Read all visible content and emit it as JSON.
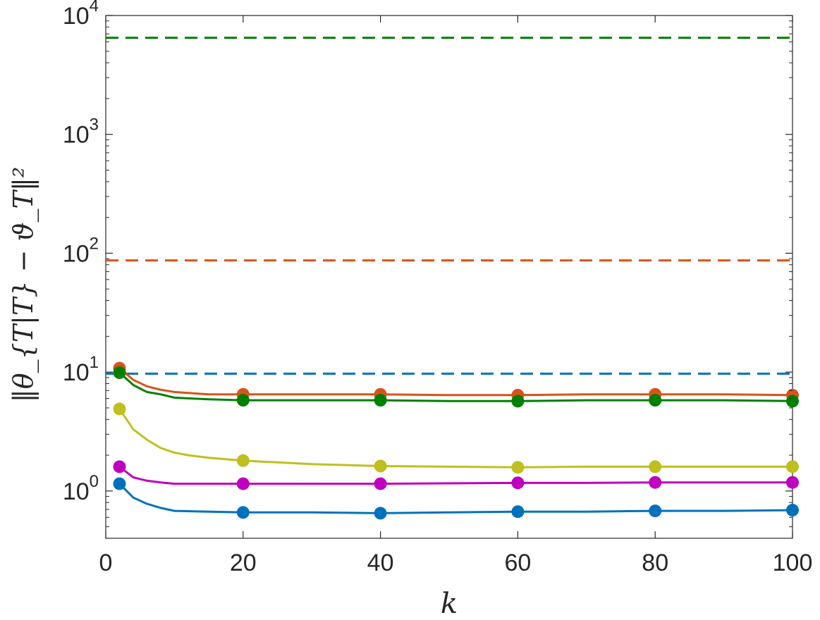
{
  "chart_data": {
    "type": "line",
    "xlabel": "k",
    "ylabel": "‖θ_{T|T} − ϑ_T‖²",
    "xlim": [
      0,
      100
    ],
    "ylim": [
      0.4,
      10000
    ],
    "yscale": "log",
    "xticks": [
      0,
      20,
      40,
      60,
      80,
      100
    ],
    "xtick_labels": [
      "0",
      "20",
      "40",
      "60",
      "80",
      "100"
    ],
    "yticks": [
      1,
      10,
      100,
      1000,
      10000
    ],
    "ytick_labels": [
      {
        "base": "10",
        "exp": "0"
      },
      {
        "base": "10",
        "exp": "1"
      },
      {
        "base": "10",
        "exp": "2"
      },
      {
        "base": "10",
        "exp": "3"
      },
      {
        "base": "10",
        "exp": "4"
      }
    ],
    "grid": false,
    "legend": "none",
    "series": [
      {
        "color": "#D95319",
        "style": "solid",
        "markers": "circle",
        "marker_x": [
          2,
          20,
          40,
          60,
          80,
          100
        ],
        "marker_y": [
          10.8,
          6.5,
          6.5,
          6.4,
          6.5,
          6.4
        ],
        "x": [
          2,
          4,
          6,
          8,
          10,
          15,
          20,
          30,
          40,
          50,
          60,
          70,
          80,
          90,
          100
        ],
        "y": [
          10.8,
          8.6,
          7.6,
          7.1,
          6.8,
          6.5,
          6.5,
          6.5,
          6.5,
          6.4,
          6.4,
          6.5,
          6.5,
          6.5,
          6.4
        ]
      },
      {
        "color": "#008000",
        "style": "solid",
        "markers": "circle",
        "marker_x": [
          2,
          20,
          40,
          60,
          80,
          100
        ],
        "marker_y": [
          9.9,
          5.8,
          5.8,
          5.7,
          5.8,
          5.7
        ],
        "x": [
          2,
          4,
          6,
          8,
          10,
          15,
          20,
          30,
          40,
          50,
          60,
          70,
          80,
          90,
          100
        ],
        "y": [
          9.9,
          7.8,
          6.8,
          6.5,
          6.1,
          5.9,
          5.8,
          5.8,
          5.8,
          5.7,
          5.7,
          5.8,
          5.8,
          5.8,
          5.7
        ]
      },
      {
        "color": "#BFBF1F",
        "style": "solid",
        "markers": "circle",
        "marker_x": [
          2,
          20,
          40,
          60,
          80,
          100
        ],
        "marker_y": [
          4.9,
          1.8,
          1.62,
          1.58,
          1.6,
          1.6
        ],
        "x": [
          2,
          4,
          6,
          8,
          10,
          12,
          15,
          20,
          30,
          40,
          50,
          60,
          70,
          80,
          90,
          100
        ],
        "y": [
          4.9,
          3.3,
          2.7,
          2.3,
          2.1,
          2.0,
          1.9,
          1.8,
          1.68,
          1.62,
          1.6,
          1.58,
          1.6,
          1.6,
          1.6,
          1.6
        ]
      },
      {
        "color": "#BF00BF",
        "style": "solid",
        "markers": "circle",
        "marker_x": [
          2,
          20,
          40,
          60,
          80,
          100
        ],
        "marker_y": [
          1.6,
          1.15,
          1.15,
          1.17,
          1.18,
          1.18
        ],
        "x": [
          2,
          4,
          6,
          8,
          10,
          15,
          20,
          30,
          40,
          50,
          60,
          70,
          80,
          90,
          100
        ],
        "y": [
          1.6,
          1.3,
          1.22,
          1.18,
          1.15,
          1.15,
          1.15,
          1.15,
          1.15,
          1.16,
          1.17,
          1.17,
          1.18,
          1.18,
          1.18
        ]
      },
      {
        "color": "#0072BD",
        "style": "solid",
        "markers": "circle",
        "marker_x": [
          2,
          20,
          40,
          60,
          80,
          100
        ],
        "marker_y": [
          1.15,
          0.66,
          0.65,
          0.67,
          0.68,
          0.69
        ],
        "x": [
          2,
          4,
          6,
          8,
          10,
          15,
          20,
          30,
          40,
          50,
          60,
          70,
          80,
          90,
          100
        ],
        "y": [
          1.15,
          0.88,
          0.78,
          0.72,
          0.68,
          0.67,
          0.66,
          0.66,
          0.65,
          0.66,
          0.67,
          0.67,
          0.68,
          0.68,
          0.69
        ]
      },
      {
        "color": "#008000",
        "style": "dashed",
        "x": [
          0,
          100
        ],
        "y": [
          6500,
          6500
        ]
      },
      {
        "color": "#D95319",
        "style": "dashed",
        "x": [
          0,
          100
        ],
        "y": [
          87,
          87
        ]
      },
      {
        "color": "#0072BD",
        "style": "dashed",
        "x": [
          0,
          100
        ],
        "y": [
          9.7,
          9.7
        ]
      }
    ]
  }
}
